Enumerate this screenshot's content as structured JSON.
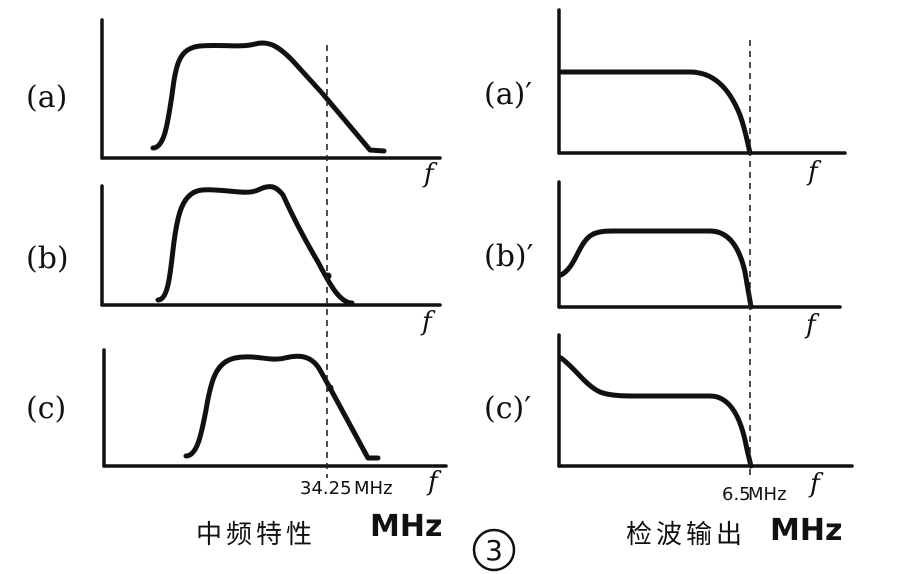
{
  "left_panels": [
    {
      "label": "(a)",
      "axis": "f"
    },
    {
      "label": "(b)",
      "axis": "f"
    },
    {
      "label": "(c)",
      "axis": "f"
    }
  ],
  "right_panels": [
    {
      "label": "(a)′",
      "axis": "f"
    },
    {
      "label": "(b)′",
      "axis": "f"
    },
    {
      "label": "(c)′",
      "axis": "f"
    }
  ],
  "left_marker": {
    "value": "34.25",
    "unit": "MHz"
  },
  "right_marker": {
    "value": "6.5",
    "unit": "MHz"
  },
  "left_caption": "中频特性",
  "left_caption_unit": "MHz",
  "right_caption": "检波输出",
  "right_caption_unit": "MHz",
  "figure_number": "3"
}
